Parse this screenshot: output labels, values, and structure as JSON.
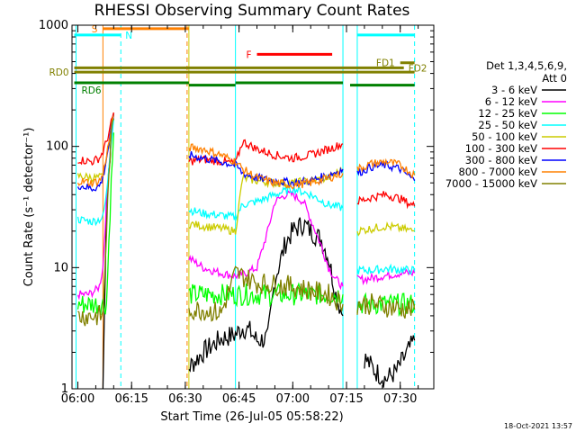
{
  "chart_data": {
    "type": "line",
    "title": "RHESSI Observing Summary Count Rates",
    "xlabel": "Start Time (26-Jul-05 05:58:22)",
    "ylabel": "Count Rate (s⁻¹ detector⁻¹)",
    "x_ticks": [
      "06:00",
      "06:15",
      "06:30",
      "06:45",
      "07:00",
      "07:15",
      "07:30"
    ],
    "y_ticks": [
      "1",
      "10",
      "100",
      "1000"
    ],
    "y_scale": "log",
    "ylim": [
      1,
      1000
    ],
    "xlim_minutes_after_0558": [
      0,
      101
    ],
    "legend": {
      "header": [
        "Det 1,3,4,5,6,9,",
        "Att 0"
      ],
      "placement": "right"
    },
    "footer_date": "18-Oct-2021 13:57",
    "series": [
      {
        "name": "3 - 6 keV",
        "color": "#000000",
        "segments": [
          {
            "t": [
              "06:07",
              "06:08",
              "06:09",
              "06:10"
            ],
            "v": [
              1.0,
              35,
              90,
              185
            ]
          },
          {
            "t": [
              "06:31",
              "06:35",
              "06:40",
              "06:44",
              "06:46",
              "06:48",
              "06:50",
              "06:53",
              "06:55",
              "06:58",
              "07:00",
              "07:03",
              "07:05",
              "07:08",
              "07:10",
              "07:12",
              "07:14"
            ],
            "v": [
              1.5,
              2.0,
              2.6,
              2.8,
              3.2,
              3.0,
              2.5,
              2.6,
              8,
              16,
              20,
              23,
              20,
              17,
              12,
              6,
              4
            ]
          },
          {
            "t": [
              "07:20",
              "07:23",
              "07:26",
              "07:29",
              "07:32",
              "07:34"
            ],
            "v": [
              1.8,
              1.4,
              1.2,
              1.4,
              2.0,
              2.5
            ]
          }
        ]
      },
      {
        "name": "6 - 12 keV",
        "color": "#ff00ff",
        "segments": [
          {
            "t": [
              "06:00",
              "06:03",
              "06:05",
              "06:06",
              "06:07",
              "06:08",
              "06:09",
              "06:10"
            ],
            "v": [
              6,
              6,
              6.5,
              7,
              10,
              35,
              90,
              190
            ]
          },
          {
            "t": [
              "06:31",
              "06:35",
              "06:40",
              "06:44",
              "06:47",
              "06:50",
              "06:53",
              "06:55",
              "06:58",
              "07:00",
              "07:03",
              "07:05",
              "07:08",
              "07:10",
              "07:12",
              "07:14"
            ],
            "v": [
              12,
              10,
              9,
              8.5,
              9,
              10,
              20,
              35,
              40,
              40,
              35,
              25,
              15,
              10,
              8,
              7
            ]
          },
          {
            "t": [
              "07:18",
              "07:20",
              "07:25",
              "07:30",
              "07:34"
            ],
            "v": [
              8,
              8,
              8.5,
              9,
              9
            ]
          }
        ]
      },
      {
        "name": "12 - 25 keV",
        "color": "#00ff00",
        "segments": [
          {
            "t": [
              "06:00",
              "06:05",
              "06:08",
              "06:09",
              "06:10"
            ],
            "v": [
              5,
              5,
              5,
              30,
              130
            ]
          },
          {
            "t": [
              "06:31",
              "06:40",
              "06:50",
              "07:00",
              "07:10",
              "07:14"
            ],
            "v": [
              6,
              6,
              6,
              6,
              6,
              6
            ]
          },
          {
            "t": [
              "07:18",
              "07:25",
              "07:30",
              "07:34"
            ],
            "v": [
              5,
              5,
              5,
              5
            ]
          }
        ]
      },
      {
        "name": "25 - 50 keV",
        "color": "#00ffff",
        "segments": [
          {
            "t": [
              "06:00",
              "06:04",
              "06:06",
              "06:07",
              "06:08",
              "06:09",
              "06:10"
            ],
            "v": [
              25,
              24,
              25,
              26,
              40,
              90,
              170
            ]
          },
          {
            "t": [
              "06:31",
              "06:35",
              "06:40",
              "06:44",
              "06:46",
              "06:50",
              "06:55",
              "07:00",
              "07:05",
              "07:10",
              "07:14"
            ],
            "v": [
              30,
              28,
              27,
              26,
              33,
              35,
              40,
              45,
              40,
              33,
              31
            ]
          },
          {
            "t": [
              "07:18",
              "07:22",
              "07:26",
              "07:30",
              "07:34"
            ],
            "v": [
              9.5,
              9.5,
              9.8,
              9.6,
              9.5
            ]
          }
        ]
      },
      {
        "name": "50 - 100 keV",
        "color": "#cccc00",
        "segments": [
          {
            "t": [
              "06:00",
              "06:05",
              "06:07",
              "06:08",
              "06:09",
              "06:10"
            ],
            "v": [
              57,
              55,
              56,
              80,
              120,
              190
            ]
          },
          {
            "t": [
              "06:31",
              "06:35",
              "06:40",
              "06:44",
              "06:46",
              "06:50",
              "06:55",
              "07:00",
              "07:05",
              "07:10",
              "07:14"
            ],
            "v": [
              23,
              22,
              21,
              20,
              55,
              52,
              50,
              50,
              52,
              55,
              65
            ]
          },
          {
            "t": [
              "07:18",
              "07:22",
              "07:26",
              "07:30",
              "07:34"
            ],
            "v": [
              20,
              21,
              22,
              21,
              20
            ]
          }
        ]
      },
      {
        "name": "100 - 300 keV",
        "color": "#ff0000",
        "segments": [
          {
            "t": [
              "06:00",
              "06:04",
              "06:06",
              "06:07",
              "06:08",
              "06:09",
              "06:10"
            ],
            "v": [
              78,
              75,
              80,
              90,
              110,
              140,
              190
            ]
          },
          {
            "t": [
              "06:31",
              "06:35",
              "06:40",
              "06:44",
              "06:46",
              "06:50",
              "06:55",
              "07:00",
              "07:05",
              "07:10",
              "07:14"
            ],
            "v": [
              75,
              78,
              75,
              72,
              110,
              95,
              85,
              80,
              85,
              95,
              105
            ]
          },
          {
            "t": [
              "07:18",
              "07:22",
              "07:26",
              "07:30",
              "07:34"
            ],
            "v": [
              35,
              38,
              40,
              37,
              32
            ]
          }
        ]
      },
      {
        "name": "300 - 800 keV",
        "color": "#0000ff",
        "segments": [
          {
            "t": [
              "06:00",
              "06:04",
              "06:06",
              "06:07",
              "06:08",
              "06:09",
              "06:10"
            ],
            "v": [
              48,
              45,
              47,
              55,
              80,
              120,
              180
            ]
          },
          {
            "t": [
              "06:31",
              "06:35",
              "06:40",
              "06:44",
              "06:46",
              "06:50",
              "06:55",
              "07:00",
              "07:05",
              "07:10",
              "07:14"
            ],
            "v": [
              85,
              80,
              75,
              70,
              60,
              55,
              52,
              50,
              52,
              58,
              65
            ]
          },
          {
            "t": [
              "07:18",
              "07:22",
              "07:26",
              "07:30",
              "07:34"
            ],
            "v": [
              60,
              68,
              70,
              65,
              52
            ]
          }
        ]
      },
      {
        "name": "800 - 7000 keV",
        "color": "#ff8000",
        "segments": [
          {
            "t": [
              "06:00",
              "06:04",
              "06:06",
              "06:07",
              "06:08",
              "06:09",
              "06:10"
            ],
            "v": [
              52,
              50,
              52,
              58,
              85,
              120,
              180
            ]
          },
          {
            "t": [
              "06:31",
              "06:35",
              "06:40",
              "06:44",
              "06:46",
              "06:50",
              "06:55",
              "07:00",
              "07:05",
              "07:10",
              "07:14"
            ],
            "v": [
              98,
              95,
              85,
              75,
              65,
              55,
              50,
              48,
              50,
              55,
              60
            ]
          },
          {
            "t": [
              "07:18",
              "07:22",
              "07:26",
              "07:30",
              "07:34"
            ],
            "v": [
              65,
              72,
              75,
              70,
              58
            ]
          }
        ]
      },
      {
        "name": "7000 - 15000 keV",
        "color": "#808000",
        "segments": [
          {
            "t": [
              "06:00",
              "06:05",
              "06:07",
              "06:08",
              "06:09",
              "06:10"
            ],
            "v": [
              4,
              4,
              4,
              20,
              90,
              170
            ]
          },
          {
            "t": [
              "06:31",
              "06:35",
              "06:40",
              "06:44",
              "06:50",
              "07:00",
              "07:10",
              "07:14"
            ],
            "v": [
              4.5,
              4.5,
              4.2,
              9,
              7.5,
              7,
              6,
              5
            ]
          },
          {
            "t": [
              "07:18",
              "07:22",
              "07:26",
              "07:30",
              "07:34"
            ],
            "v": [
              5,
              5,
              4.8,
              4.6,
              4.5
            ]
          }
        ]
      }
    ],
    "state_bars": [
      {
        "label": "S",
        "color": "#ff8000",
        "start": "06:07",
        "end": "06:31",
        "level": 935,
        "label_side": "left"
      },
      {
        "label": "N",
        "color": "#00ffff",
        "start": "05:59",
        "end": "06:12",
        "level": 830,
        "label_side": "right"
      },
      {
        "label": "N",
        "color": "#00ffff",
        "start": "07:18",
        "end": "07:34",
        "level": 830,
        "label_side": "none"
      },
      {
        "label": "F",
        "color": "#ff0000",
        "start": "06:50",
        "end": "07:11",
        "level": 575,
        "label_side": "left"
      },
      {
        "label": "FD1",
        "color": "#808000",
        "start": "07:30",
        "end": "07:34",
        "level": 490,
        "label_side": "left"
      },
      {
        "label": "FD2",
        "color": "#808000",
        "start": "05:59",
        "end": "07:31",
        "level": 445,
        "label_side": "right"
      },
      {
        "label": "RD0",
        "color": "#808000",
        "start": "05:59",
        "end": "07:34",
        "level": 410,
        "label_side": "left"
      },
      {
        "label": "RD6",
        "color": "#008000",
        "start": "05:59",
        "end": "06:31",
        "level": 335,
        "label_side": "under"
      },
      {
        "label": "",
        "color": "#008000",
        "start": "06:31",
        "end": "06:44",
        "level": 320,
        "label_side": "none"
      },
      {
        "label": "",
        "color": "#008000",
        "start": "06:44",
        "end": "07:14",
        "level": 335,
        "label_side": "none"
      },
      {
        "label": "",
        "color": "#008000",
        "start": "07:16",
        "end": "07:34",
        "level": 320,
        "label_side": "none"
      }
    ],
    "vertical_markers": [
      {
        "t": "05:59:30",
        "color": "#00ffff",
        "dash": "solid"
      },
      {
        "t": "06:07",
        "color": "#ff8000",
        "dash": "solid"
      },
      {
        "t": "06:12",
        "color": "#00ffff",
        "dash": "dashed"
      },
      {
        "t": "06:30:30",
        "color": "#ff8000",
        "dash": "dashed"
      },
      {
        "t": "06:31",
        "color": "#cccc00",
        "dash": "solid"
      },
      {
        "t": "06:44",
        "color": "#00ffff",
        "dash": "solid"
      },
      {
        "t": "07:14",
        "color": "#00ffff",
        "dash": "solid"
      },
      {
        "t": "07:18",
        "color": "#00ffff",
        "dash": "solid"
      },
      {
        "t": "07:34",
        "color": "#00ffff",
        "dash": "dashed"
      }
    ]
  }
}
